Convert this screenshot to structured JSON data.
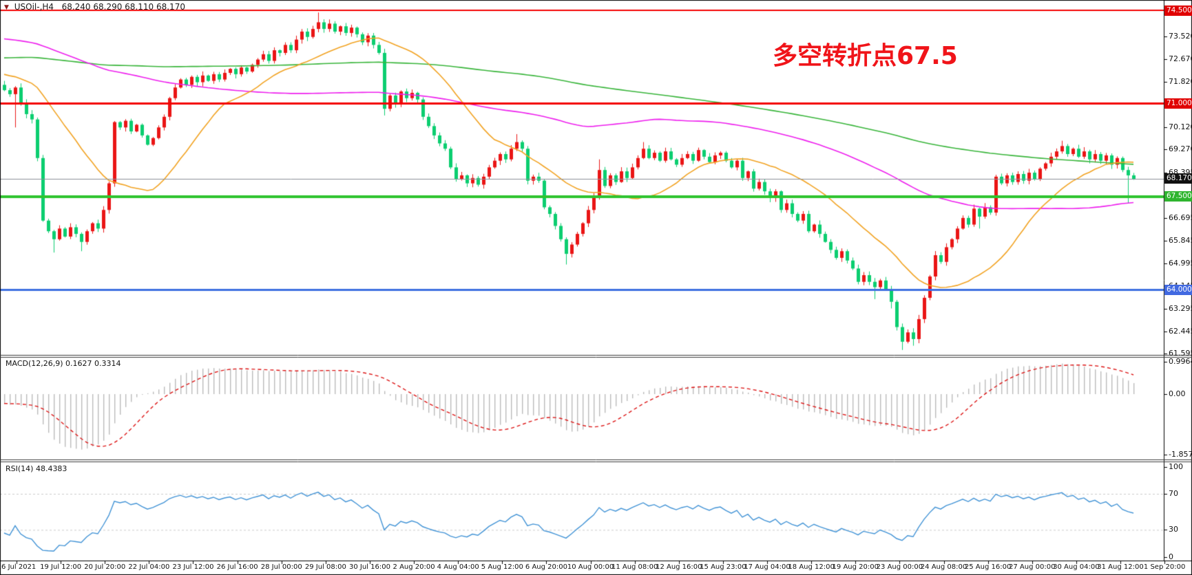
{
  "header": {
    "symbol": "USOil-,H4",
    "ohlc_text": "68.240 68.290 68.110 68.170",
    "dropdown_icon": "triangle-down"
  },
  "annotation": {
    "text": "多空转折点67.5",
    "color": "#f01419"
  },
  "panels": {
    "macd": {
      "label": "MACD(12,26,9) 0.1627 0.3314",
      "ticks": [
        {
          "text": "0.9964",
          "value": 0.9964
        },
        {
          "text": "0.00",
          "value": 0
        },
        {
          "text": "-1.8579",
          "value": -1.8579
        }
      ]
    },
    "rsi": {
      "label": "RSI(14) 48.4383",
      "ticks": [
        {
          "text": "100",
          "value": 100
        },
        {
          "text": "70",
          "value": 70
        },
        {
          "text": "30",
          "value": 30
        },
        {
          "text": "0",
          "value": 0
        }
      ],
      "dashed_levels": [
        70,
        30
      ]
    }
  },
  "colors": {
    "bull": "#ea1515",
    "bear": "#0cce70",
    "ma_fast": "#f2a322",
    "ma_mid": "#ee1eee",
    "ma_slow": "#38b53a",
    "bid_line": "#8a9097",
    "bid_badge": "#111111",
    "macd_hist": "#bbbbbb",
    "macd_signal": "#dd1414",
    "rsi_line": "#4193d6",
    "rsi_level": "#cccccc",
    "frame": "#000000",
    "separator": "#3c3c3c"
  },
  "chart_data": {
    "type": "candlestick",
    "symbol": "USOil",
    "timeframe": "H4",
    "title": "USOil H4 candlestick chart with MA / MACD / RSI",
    "current_price": "68.170",
    "ylim": [
      61.55,
      74.89
    ],
    "first_open": 71.7,
    "closes": [
      71.5,
      71.35,
      71.6,
      71.0,
      70.6,
      70.4,
      68.95,
      66.6,
      66.2,
      65.9,
      66.3,
      66.0,
      66.35,
      66.1,
      65.8,
      66.2,
      66.5,
      66.3,
      67.0,
      68.0,
      70.3,
      70.1,
      70.35,
      69.95,
      70.2,
      69.8,
      69.45,
      69.7,
      70.1,
      70.5,
      71.2,
      71.6,
      71.9,
      71.7,
      72.0,
      71.8,
      72.05,
      71.85,
      72.1,
      71.9,
      72.15,
      72.3,
      72.1,
      72.35,
      72.2,
      72.45,
      72.65,
      72.85,
      72.6,
      73.0,
      72.9,
      73.2,
      73.0,
      73.4,
      73.7,
      73.5,
      73.8,
      74.05,
      73.8,
      74.0,
      73.7,
      73.9,
      73.65,
      73.85,
      73.6,
      73.3,
      73.55,
      73.2,
      72.9,
      70.8,
      71.3,
      71.0,
      71.45,
      71.2,
      71.4,
      71.15,
      70.5,
      70.15,
      69.8,
      69.5,
      69.3,
      68.6,
      68.15,
      68.3,
      68.0,
      68.2,
      67.95,
      68.25,
      68.6,
      68.85,
      69.1,
      68.9,
      69.3,
      69.55,
      69.3,
      68.1,
      68.25,
      68.1,
      67.1,
      66.85,
      66.4,
      65.9,
      65.35,
      65.7,
      66.1,
      66.5,
      67.0,
      67.5,
      68.5,
      67.9,
      68.3,
      68.05,
      68.45,
      68.2,
      68.6,
      68.95,
      69.3,
      68.95,
      69.15,
      68.85,
      69.2,
      68.9,
      68.7,
      68.95,
      69.1,
      68.85,
      69.25,
      69.0,
      68.8,
      69.05,
      69.15,
      68.85,
      68.6,
      68.85,
      68.2,
      68.45,
      67.8,
      68.05,
      67.7,
      67.45,
      67.7,
      67.0,
      67.25,
      66.85,
      66.6,
      66.85,
      66.2,
      66.45,
      66.1,
      65.8,
      65.5,
      65.2,
      65.45,
      65.1,
      64.8,
      64.3,
      64.55,
      64.3,
      64.1,
      64.35,
      64.0,
      63.55,
      62.6,
      62.05,
      62.4,
      62.15,
      62.9,
      63.7,
      64.5,
      65.3,
      65.05,
      65.6,
      65.9,
      66.3,
      66.7,
      66.45,
      67.05,
      66.75,
      67.1,
      66.9,
      68.25,
      68.0,
      68.3,
      68.05,
      68.35,
      68.1,
      68.4,
      68.15,
      68.55,
      68.75,
      69.0,
      69.2,
      69.4,
      69.1,
      69.3,
      69.0,
      69.2,
      68.9,
      69.1,
      68.85,
      69.05,
      68.7,
      68.95,
      68.5,
      68.3,
      68.17
    ],
    "wick_overrides": {
      "2": {
        "low": 70.1
      },
      "9": {
        "low": 65.4
      },
      "14": {
        "low": 65.45
      },
      "57": {
        "high": 74.42
      },
      "69": {
        "low": 70.55
      },
      "93": {
        "high": 69.85
      },
      "102": {
        "low": 64.95
      },
      "108": {
        "high": 68.9
      },
      "116": {
        "high": 69.55
      },
      "158": {
        "low": 63.65
      },
      "161": {
        "low": 63.3
      },
      "163": {
        "low": 61.74
      },
      "165": {
        "low": 61.9
      },
      "177": {
        "low": 66.3
      },
      "192": {
        "high": 69.6
      },
      "204": {
        "low": 67.25
      }
    },
    "moving_averages": [
      {
        "name": "MA-fast",
        "period": 21,
        "color_key": "ma_fast"
      },
      {
        "name": "MA-mid",
        "period": 100,
        "color_key": "ma_mid"
      },
      {
        "name": "MA-slow",
        "period": 200,
        "color_key": "ma_slow"
      }
    ],
    "macd": {
      "fast": 12,
      "slow": 26,
      "signal": 9,
      "range": [
        -1.8579,
        0.9964
      ]
    },
    "rsi": {
      "period": 14,
      "range": [
        0,
        100
      ]
    },
    "hlines": [
      {
        "price": 74.5,
        "label": "74.500",
        "color": "#f40000",
        "width": 2,
        "badge_bg": "#e00000"
      },
      {
        "price": 71.0,
        "label": "71.000",
        "color": "#f40000",
        "width": 3,
        "badge_bg": "#e00000"
      },
      {
        "price": 68.17,
        "label": "68.170",
        "color": "#8a9097",
        "width": 1,
        "badge_bg": "#111111"
      },
      {
        "price": 67.5,
        "label": "67.500",
        "color": "#2fc42f",
        "width": 4,
        "badge_bg": "#2eb52e"
      },
      {
        "price": 64.0,
        "label": "64.000",
        "color": "#3d6fe0",
        "width": 3,
        "badge_bg": "#4169e1"
      }
    ],
    "y_ticks": [
      {
        "text": "74.370",
        "price": 74.37
      },
      {
        "text": "73.520",
        "price": 73.52
      },
      {
        "text": "72.670",
        "price": 72.67
      },
      {
        "text": "71.820",
        "price": 71.82
      },
      {
        "text": "70.120",
        "price": 70.12
      },
      {
        "text": "69.270",
        "price": 69.27
      },
      {
        "text": "68.395",
        "price": 68.395
      },
      {
        "text": "66.695",
        "price": 66.695
      },
      {
        "text": "65.845",
        "price": 65.845
      },
      {
        "text": "64.995",
        "price": 64.995
      },
      {
        "text": "64.145",
        "price": 64.145
      },
      {
        "text": "63.295",
        "price": 63.295
      },
      {
        "text": "62.445",
        "price": 62.445
      },
      {
        "text": "61.595",
        "price": 61.595
      }
    ],
    "time_labels": [
      "16 Jul 2021",
      "19 Jul 12:00",
      "20 Jul 20:00",
      "22 Jul 04:00",
      "23 Jul 12:00",
      "26 Jul 16:00",
      "28 Jul 00:00",
      "29 Jul 08:00",
      "30 Jul 16:00",
      "2 Aug 20:00",
      "4 Aug 04:00",
      "5 Aug 12:00",
      "6 Aug 20:00",
      "10 Aug 00:00",
      "11 Aug 08:00",
      "12 Aug 16:00",
      "15 Aug 23:00",
      "17 Aug 04:00",
      "18 Aug 12:00",
      "19 Aug 20:00",
      "23 Aug 00:00",
      "24 Aug 08:00",
      "25 Aug 16:00",
      "27 Aug 00:00",
      "30 Aug 04:00",
      "31 Aug 12:00",
      "1 Sep 20:00"
    ]
  }
}
